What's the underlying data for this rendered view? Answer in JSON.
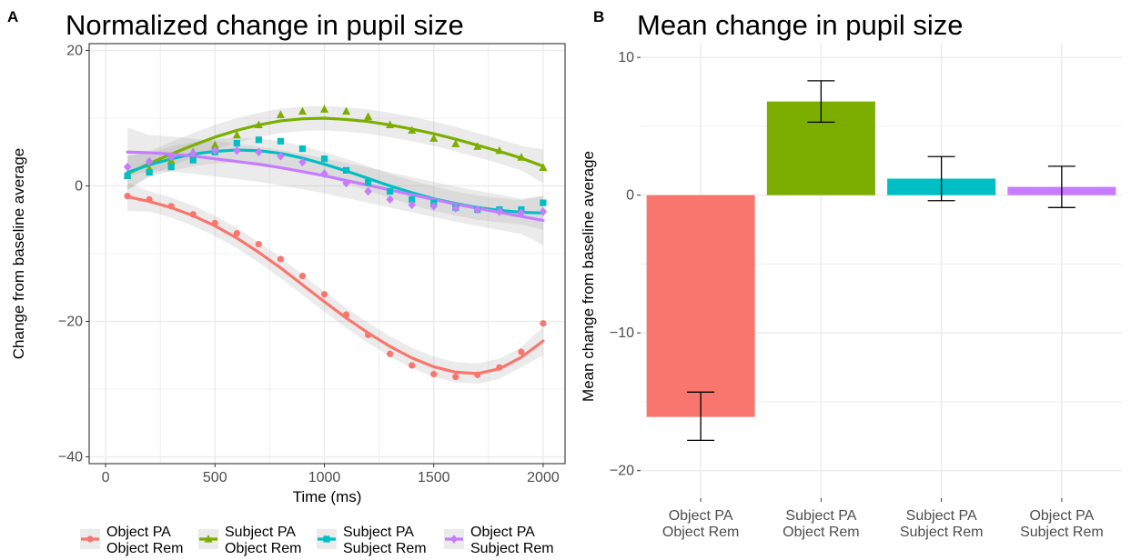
{
  "chart_data": [
    {
      "panel": "A",
      "type": "scatter",
      "title": "Normalized change in pupil size",
      "xlabel": "Time (ms)",
      "ylabel": "Change from baseline average",
      "xlim": [
        -75,
        2100
      ],
      "ylim": [
        -41,
        21
      ],
      "xticks": [
        "0",
        "500",
        "1000",
        "1500",
        "2000"
      ],
      "yticks": [
        "20",
        "0",
        "−20",
        "−40"
      ],
      "xtick_values": [
        0,
        500,
        1000,
        1500,
        2000
      ],
      "ytick_values": [
        20,
        0,
        -20,
        -40
      ],
      "grid": true,
      "legend_position": "bottom",
      "x": [
        100,
        200,
        300,
        400,
        500,
        600,
        700,
        800,
        900,
        1000,
        1100,
        1200,
        1300,
        1400,
        1500,
        1600,
        1700,
        1800,
        1900,
        2000
      ],
      "series": [
        {
          "name": "Object PA\nObject Rem",
          "name_lines": [
            "Object PA",
            "Object Rem"
          ],
          "color": "#F8766D",
          "marker": "circle",
          "values": [
            -1.5,
            -2,
            -3,
            -4.2,
            -5.5,
            -7,
            -8.6,
            -10.8,
            -13.3,
            -16,
            -19,
            -22,
            -24.8,
            -26.5,
            -27.8,
            -28.2,
            -27.9,
            -26.8,
            -24.5,
            -20.3
          ],
          "fit": [
            -1.6,
            -2.3,
            -3.2,
            -4.4,
            -5.9,
            -7.7,
            -9.8,
            -12.1,
            -14.6,
            -17.1,
            -19.5,
            -21.7,
            -23.7,
            -25.4,
            -26.7,
            -27.5,
            -27.7,
            -27.0,
            -25.3,
            -22.9
          ],
          "band": 1.5
        },
        {
          "name": "Subject PA\nObject Rem",
          "name_lines": [
            "Subject PA",
            "Object Rem"
          ],
          "color": "#7CAE00",
          "marker": "triangle",
          "values": [
            1.5,
            2.5,
            3.7,
            5,
            6,
            7.5,
            9,
            10.5,
            11,
            11.3,
            11,
            10.2,
            9,
            8.2,
            7,
            6.2,
            5.8,
            5.2,
            4.2,
            2.7
          ],
          "fit": [
            1.8,
            3.3,
            4.7,
            6.0,
            7.2,
            8.2,
            9.0,
            9.6,
            9.9,
            10.0,
            9.8,
            9.5,
            9.0,
            8.4,
            7.7,
            6.9,
            6.0,
            5.1,
            4.1,
            2.9
          ],
          "band": 1.8
        },
        {
          "name": "Subject PA\nSubject Rem",
          "name_lines": [
            "Subject PA",
            "Subject Rem"
          ],
          "color": "#00BFC4",
          "marker": "square",
          "values": [
            1.5,
            2,
            2.8,
            3.8,
            5,
            6.3,
            6.8,
            6.6,
            5.5,
            4,
            2.3,
            0.5,
            -0.8,
            -2,
            -2.5,
            -3.2,
            -3.5,
            -3.5,
            -3.5,
            -2.5
          ],
          "fit": [
            2.0,
            3.1,
            4.0,
            4.7,
            5.1,
            5.3,
            5.2,
            4.8,
            4.1,
            3.2,
            2.2,
            1.1,
            0.0,
            -1.0,
            -1.9,
            -2.6,
            -3.2,
            -3.6,
            -3.9,
            -4.0
          ],
          "band": 1.8
        },
        {
          "name": "Object PA\nSubject Rem",
          "name_lines": [
            "Object PA",
            "Subject Rem"
          ],
          "color": "#C77CFF",
          "marker": "diamond",
          "values": [
            2.8,
            3.6,
            4.3,
            4.8,
            5.2,
            5.2,
            5,
            4.4,
            3.5,
            1.8,
            0.4,
            -0.8,
            -2,
            -2.8,
            -3,
            -3.3,
            -3.5,
            -3.8,
            -4,
            -3.8
          ],
          "fit": [
            5.0,
            4.9,
            4.7,
            4.4,
            4.0,
            3.6,
            3.2,
            2.7,
            2.1,
            1.5,
            0.8,
            0.1,
            -0.6,
            -1.3,
            -2.0,
            -2.7,
            -3.3,
            -3.9,
            -4.5,
            -5.1
          ],
          "band": 2.6
        }
      ]
    },
    {
      "panel": "B",
      "type": "bar",
      "title": "Mean change in pupil size",
      "xlabel": "",
      "ylabel": "Mean change from baseline average",
      "ylim": [
        -22,
        11
      ],
      "yticks": [
        "10",
        "0",
        "−10",
        "−20"
      ],
      "ytick_values": [
        10,
        0,
        -10,
        -20
      ],
      "grid": true,
      "categories": [
        "Object PA\nObject Rem",
        "Subject PA\nObject Rem",
        "Subject PA\nSubject Rem",
        "Object PA\nSubject Rem"
      ],
      "category_lines": [
        [
          "Object PA",
          "Object Rem"
        ],
        [
          "Subject PA",
          "Object Rem"
        ],
        [
          "Subject PA",
          "Subject Rem"
        ],
        [
          "Object PA",
          "Subject Rem"
        ]
      ],
      "values": [
        -16.1,
        6.8,
        1.2,
        0.6
      ],
      "error_upper": [
        -14.3,
        8.3,
        2.8,
        2.1
      ],
      "error_lower": [
        -17.8,
        5.3,
        -0.4,
        -0.9
      ],
      "colors": [
        "#F8766D",
        "#7CAE00",
        "#00BFC4",
        "#C77CFF"
      ]
    }
  ]
}
